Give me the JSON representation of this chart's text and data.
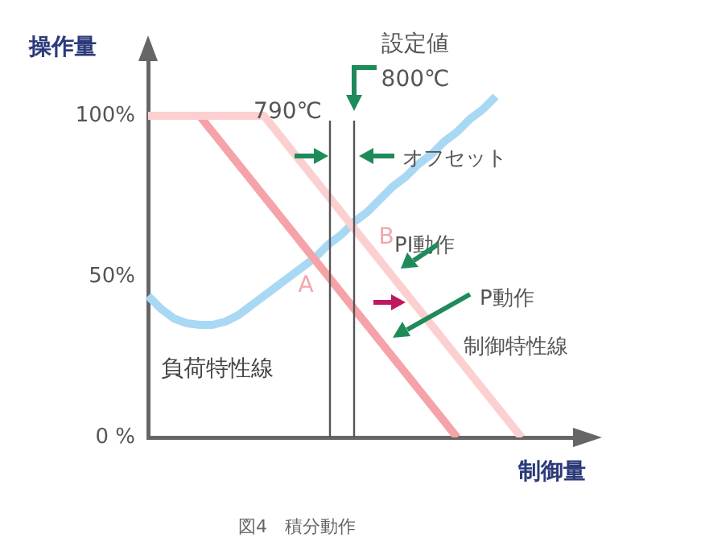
{
  "chart_data": {
    "type": "line",
    "xlabel": "制御量",
    "ylabel": "操作量",
    "categories": [
      null,
      null,
      null,
      null,
      null,
      null,
      null,
      null,
      null,
      null,
      null,
      null,
      null,
      null,
      null,
      null,
      null,
      null,
      null,
      null,
      null,
      null,
      null,
      null,
      null,
      null,
      null,
      null,
      null,
      null,
      null,
      null,
      null,
      null,
      null
    ],
    "ylim": [
      0,
      120
    ],
    "yticks": [
      {
        "value": 0,
        "label": "0 %"
      },
      {
        "value": 50,
        "label": "50%"
      },
      {
        "value": 100,
        "label": "100%"
      }
    ],
    "tick_labels": "y",
    "series": [
      {
        "color": "#fcd0d0",
        "values": [
          100,
          100,
          100,
          100,
          100,
          100,
          100,
          100,
          100,
          100,
          95,
          90,
          85,
          80,
          75,
          70,
          65,
          60,
          55,
          50,
          45,
          40,
          35,
          30,
          25,
          20,
          15,
          10,
          5,
          0,
          null,
          null,
          null,
          null,
          null
        ]
      },
      {
        "color": "#f5a3a8",
        "values": [
          100,
          100,
          100,
          100,
          100,
          95,
          90,
          85,
          80,
          75,
          70,
          65,
          60,
          55,
          50,
          45,
          40,
          35,
          30,
          25,
          20,
          15,
          10,
          5,
          0,
          null,
          null,
          null,
          null,
          null,
          null,
          null,
          null,
          null,
          null
        ]
      },
      {
        "color": "#a9d8f5",
        "values": [
          44,
          40,
          37,
          35.5,
          35,
          35,
          36,
          38,
          41,
          44,
          47,
          50,
          53,
          56,
          60,
          63,
          67,
          70,
          74,
          78,
          81,
          85,
          88,
          92,
          95,
          99,
          102,
          106,
          null,
          null,
          null,
          null,
          null,
          null,
          null
        ]
      }
    ],
    "annotations": [
      "A",
      "B",
      "790℃",
      "設定値",
      "800℃",
      "オフセット",
      "PI動作",
      "P動作",
      "制御特性線",
      "負荷特性線",
      "図4　積分動作"
    ]
  }
}
